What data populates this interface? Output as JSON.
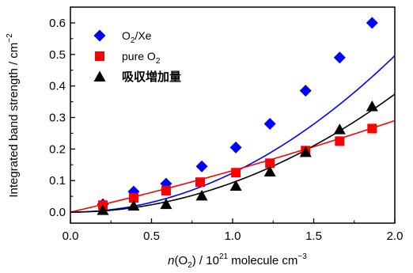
{
  "chart_data": {
    "type": "scatter",
    "xlabel": {
      "prefix": "n",
      "mid1": "(O",
      "sub": "2",
      "mid2": ") / 10",
      "sup": "21",
      "mid3": " molecule cm",
      "sup2": "−3"
    },
    "ylabel": {
      "text": "Integrated band strength / cm",
      "sup": "−2"
    },
    "xlim": [
      0.0,
      2.0
    ],
    "ylim": [
      -0.035,
      0.65
    ],
    "xticks": [
      "0.0",
      "0.5",
      "1.0",
      "1.5",
      "2.0"
    ],
    "yticks": [
      "0.0",
      "0.1",
      "0.2",
      "0.3",
      "0.4",
      "0.5",
      "0.6"
    ],
    "legend_position": "top-left",
    "series": [
      {
        "name": "O2/Xe",
        "legend_main": "O",
        "legend_sub": "2",
        "legend_tail": "/Xe",
        "marker": "diamond",
        "color": "#0000ff",
        "points": [
          [
            0.2,
            0.025
          ],
          [
            0.39,
            0.065
          ],
          [
            0.59,
            0.09
          ],
          [
            0.81,
            0.145
          ],
          [
            1.02,
            0.205
          ],
          [
            1.23,
            0.28
          ],
          [
            1.45,
            0.385
          ],
          [
            1.66,
            0.49
          ],
          [
            1.86,
            0.6
          ]
        ],
        "fit": [
          0.0,
          0.0,
          0.124
        ]
      },
      {
        "name": "pure O2",
        "legend_main": "pure O",
        "legend_sub": "2",
        "legend_tail": "",
        "marker": "square",
        "color": "#ff0000",
        "points": [
          [
            0.2,
            0.022
          ],
          [
            0.39,
            0.045
          ],
          [
            0.59,
            0.068
          ],
          [
            0.8,
            0.095
          ],
          [
            1.02,
            0.125
          ],
          [
            1.23,
            0.155
          ],
          [
            1.45,
            0.195
          ],
          [
            1.66,
            0.225
          ],
          [
            1.86,
            0.265
          ]
        ],
        "fit": [
          0.0,
          0.118,
          0.0135
        ]
      },
      {
        "name": "吸収増加量",
        "legend_main": "吸収増加量",
        "legend_sub": "",
        "legend_tail": "",
        "marker": "triangle",
        "color": "#000000",
        "points": [
          [
            0.2,
            0.006
          ],
          [
            0.39,
            0.02
          ],
          [
            0.59,
            0.025
          ],
          [
            0.81,
            0.052
          ],
          [
            1.02,
            0.083
          ],
          [
            1.23,
            0.128
          ],
          [
            1.45,
            0.19
          ],
          [
            1.66,
            0.262
          ],
          [
            1.86,
            0.335
          ]
        ],
        "fit": [
          0.0,
          0.0,
          0.0935
        ]
      }
    ]
  }
}
